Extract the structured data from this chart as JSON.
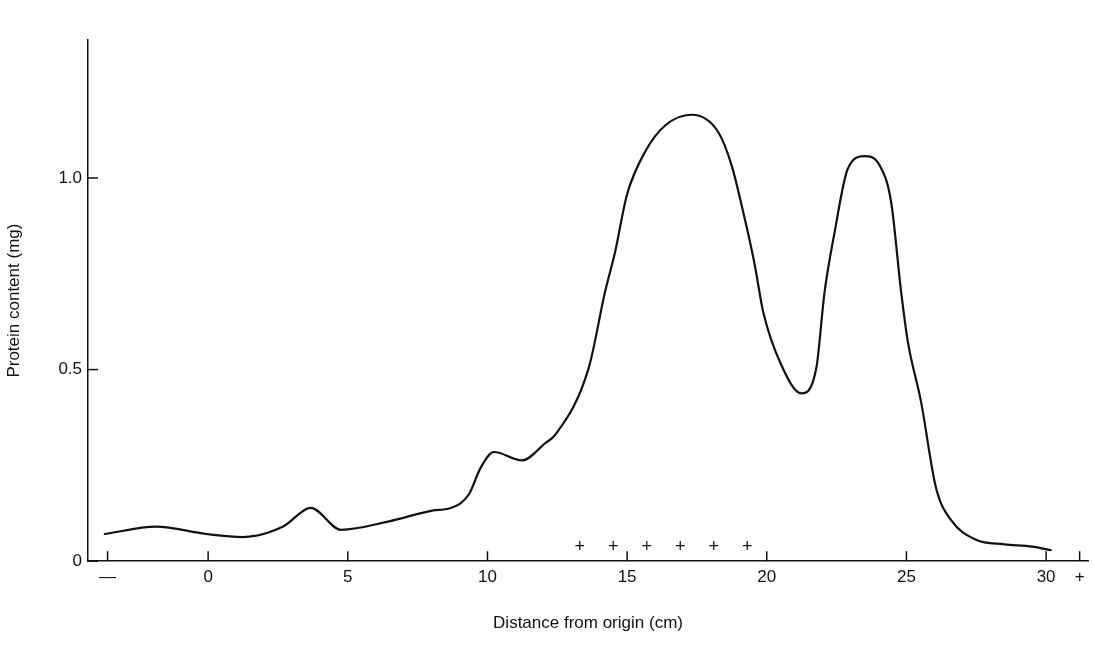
{
  "chart_data": {
    "type": "line",
    "xlabel": "Distance from origin (cm)",
    "ylabel": "Protein content (mg)",
    "x": [
      -3.7,
      -1.86,
      -0.07,
      1.24,
      2.67,
      3.68,
      4.75,
      6.48,
      8.02,
      8.74,
      9.33,
      9.75,
      10.23,
      11.24,
      12.07,
      12.43,
      13.62,
      14.21,
      14.57,
      14.99,
      15.64,
      16.36,
      17.31,
      18.26,
      18.74,
      19.21,
      19.57,
      19.87,
      20.52,
      21.24,
      21.77,
      22.07,
      22.43,
      22.9,
      23.5,
      24.04,
      24.45,
      24.81,
      25.05,
      25.52,
      26.06,
      26.6,
      27.49,
      28.5,
      29.5,
      30.16
    ],
    "series": [
      {
        "color": "#111111",
        "values": [
          0.071,
          0.09,
          0.071,
          0.063,
          0.09,
          0.139,
          0.082,
          0.104,
          0.132,
          0.14,
          0.174,
          0.243,
          0.285,
          0.263,
          0.308,
          0.33,
          0.503,
          0.703,
          0.807,
          0.955,
          1.068,
          1.137,
          1.165,
          1.12,
          1.033,
          0.894,
          0.773,
          0.651,
          0.512,
          0.438,
          0.503,
          0.703,
          0.859,
          1.024,
          1.057,
          1.033,
          0.938,
          0.703,
          0.573,
          0.417,
          0.191,
          0.107,
          0.056,
          0.044,
          0.038,
          0.029
        ]
      }
    ],
    "xlim": [
      -4.3,
      31.5
    ],
    "xticks": [
      {
        "value": -3.6,
        "label": "—"
      },
      0,
      5,
      10,
      15,
      20,
      25,
      30,
      {
        "value": 31.2,
        "label": "+"
      }
    ],
    "ylim": [
      0,
      1.36
    ],
    "yticks": [
      0,
      {
        "value": 0.5,
        "label": "0.5"
      },
      {
        "value": 1,
        "label": "1.0"
      }
    ],
    "grid": false,
    "legend": false,
    "marker": "none",
    "line_style": "solid",
    "annotations": [
      "+ + + + + +"
    ]
  }
}
